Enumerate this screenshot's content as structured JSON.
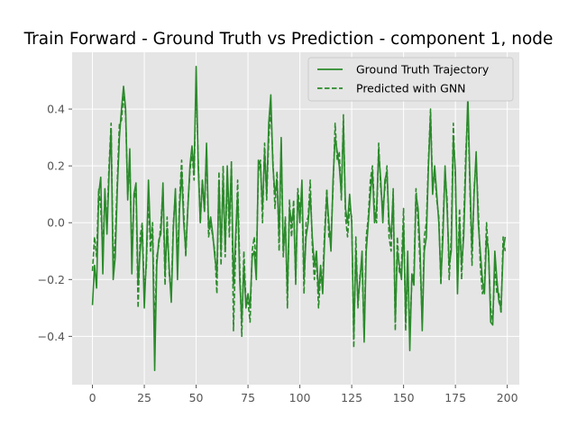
{
  "chart_data": {
    "type": "line",
    "title": "Train Forward - Ground Truth vs Prediction - component 1, node",
    "xlabel": "",
    "ylabel": "",
    "xlim": [
      -9.8,
      205.8
    ],
    "ylim": [
      -0.57,
      0.6
    ],
    "xticks": [
      0,
      25,
      50,
      75,
      100,
      125,
      150,
      175,
      200
    ],
    "yticks": [
      -0.4,
      -0.2,
      0.0,
      0.2,
      0.4
    ],
    "ytick_labels": [
      "−0.4",
      "−0.2",
      "0.0",
      "0.2",
      "0.4"
    ],
    "grid": true,
    "legend_position": "top-right",
    "colors": {
      "line": "#2a8a2a",
      "plot_bg": "#e5e5e5",
      "grid": "#ffffff",
      "tick": "#555555",
      "text": "#000000"
    },
    "series": [
      {
        "name": "Ground Truth Trajectory",
        "style": "solid",
        "values": [
          -0.29,
          -0.15,
          -0.23,
          0.1,
          0.16,
          -0.18,
          0.12,
          -0.04,
          0.17,
          0.33,
          -0.2,
          -0.12,
          0.12,
          0.3,
          0.4,
          0.48,
          0.4,
          0.08,
          0.26,
          -0.18,
          0.1,
          0.14,
          -0.22,
          -0.1,
          -0.02,
          -0.3,
          -0.12,
          0.15,
          -0.05,
          -0.04,
          -0.52,
          -0.15,
          -0.06,
          -0.04,
          0.14,
          -0.18,
          -0.02,
          -0.16,
          -0.28,
          -0.02,
          0.12,
          -0.2,
          0.05,
          0.18,
          0.0,
          -0.1,
          0.05,
          0.2,
          0.27,
          0.18,
          0.55,
          0.2,
          0.0,
          0.15,
          0.04,
          0.28,
          -0.02,
          0.02,
          -0.04,
          -0.12,
          -0.18,
          0.15,
          -0.1,
          0.16,
          -0.1,
          0.2,
          0.0,
          0.2,
          -0.22,
          -0.05,
          0.1,
          -0.2,
          -0.35,
          -0.15,
          -0.3,
          -0.25,
          -0.3,
          -0.12,
          -0.1,
          -0.2,
          0.22,
          0.2,
          0.05,
          0.25,
          0.1,
          0.35,
          0.45,
          0.2,
          0.1,
          0.15,
          -0.05,
          0.3,
          -0.1,
          0.0,
          -0.25,
          0.05,
          0.0,
          0.05,
          -0.2,
          0.1,
          0.0,
          0.15,
          -0.2,
          -0.05,
          0.0,
          0.1,
          -0.05,
          -0.15,
          -0.1,
          -0.25,
          -0.15,
          -0.25,
          -0.05,
          0.1,
          0.0,
          -0.1,
          0.15,
          0.3,
          0.25,
          0.2,
          0.1,
          0.35,
          0.05,
          0.0,
          0.1,
          0.0,
          -0.4,
          -0.1,
          -0.28,
          -0.2,
          -0.1,
          -0.42,
          -0.1,
          0.0,
          0.1,
          0.18,
          0.0,
          0.05,
          0.25,
          0.15,
          0.0,
          0.15,
          0.18,
          0.0,
          -0.05,
          0.1,
          -0.35,
          -0.1,
          -0.15,
          -0.2,
          0.0,
          -0.35,
          -0.1,
          -0.45,
          -0.18,
          -0.22,
          0.1,
          0.05,
          -0.1,
          -0.38,
          -0.1,
          -0.05,
          0.2,
          0.38,
          0.1,
          0.2,
          0.1,
          0.0,
          -0.2,
          -0.05,
          0.2,
          0.05,
          -0.15,
          -0.1,
          0.3,
          0.18,
          -0.25,
          0.0,
          -0.15,
          -0.05,
          0.2,
          0.45,
          0.15,
          -0.1,
          0.1,
          0.25,
          0.0,
          -0.1,
          -0.2,
          -0.25,
          -0.05,
          -0.1,
          -0.35,
          -0.36,
          -0.1,
          -0.2,
          -0.28,
          -0.3,
          -0.1,
          -0.05
        ]
      },
      {
        "name": "Predicted with GNN",
        "style": "dashed",
        "values": [
          -0.17,
          -0.05,
          -0.12,
          0.12,
          0.05,
          -0.1,
          0.1,
          0.0,
          0.2,
          0.35,
          -0.15,
          -0.05,
          0.15,
          0.35,
          0.36,
          0.45,
          0.38,
          0.1,
          0.22,
          -0.12,
          0.08,
          0.12,
          -0.3,
          -0.05,
          0.0,
          -0.25,
          -0.15,
          0.1,
          -0.1,
          0.0,
          -0.4,
          -0.12,
          -0.08,
          0.0,
          0.12,
          -0.22,
          0.02,
          -0.18,
          -0.25,
          0.0,
          0.1,
          -0.15,
          0.08,
          0.22,
          0.04,
          -0.12,
          0.06,
          0.18,
          0.25,
          0.15,
          0.5,
          0.22,
          0.0,
          0.15,
          0.04,
          0.26,
          -0.05,
          0.0,
          -0.05,
          -0.1,
          -0.25,
          0.18,
          -0.15,
          0.2,
          -0.12,
          0.18,
          -0.05,
          0.22,
          -0.38,
          -0.1,
          0.15,
          -0.15,
          -0.4,
          -0.1,
          -0.28,
          -0.28,
          -0.35,
          -0.1,
          -0.05,
          -0.15,
          0.18,
          0.22,
          0.0,
          0.28,
          0.08,
          0.3,
          0.4,
          0.22,
          0.05,
          0.18,
          -0.1,
          0.28,
          -0.12,
          0.02,
          -0.3,
          0.08,
          -0.05,
          0.08,
          -0.22,
          0.12,
          0.05,
          0.1,
          -0.25,
          0.0,
          0.02,
          0.15,
          -0.08,
          -0.2,
          -0.12,
          -0.3,
          -0.18,
          -0.2,
          -0.02,
          0.12,
          -0.05,
          -0.05,
          0.12,
          0.35,
          0.22,
          0.25,
          0.08,
          0.38,
          0.02,
          -0.05,
          0.05,
          0.02,
          -0.44,
          -0.05,
          -0.3,
          -0.18,
          -0.15,
          -0.4,
          -0.05,
          0.02,
          0.15,
          0.2,
          0.05,
          0.0,
          0.28,
          0.12,
          0.05,
          0.12,
          0.2,
          -0.05,
          -0.1,
          0.12,
          -0.38,
          -0.05,
          -0.18,
          -0.15,
          0.05,
          -0.38,
          -0.15,
          -0.4,
          -0.2,
          -0.18,
          0.12,
          0.0,
          -0.15,
          -0.35,
          -0.05,
          0.0,
          0.22,
          0.4,
          0.12,
          0.18,
          0.08,
          0.02,
          -0.22,
          0.0,
          0.18,
          0.08,
          -0.2,
          -0.05,
          0.35,
          0.15,
          -0.2,
          0.05,
          -0.2,
          0.0,
          0.25,
          0.4,
          0.12,
          -0.15,
          0.12,
          0.22,
          0.05,
          -0.15,
          -0.25,
          -0.22,
          0.0,
          -0.12,
          -0.3,
          -0.35,
          -0.15,
          -0.25,
          -0.25,
          -0.32,
          -0.05,
          -0.1
        ]
      }
    ]
  }
}
